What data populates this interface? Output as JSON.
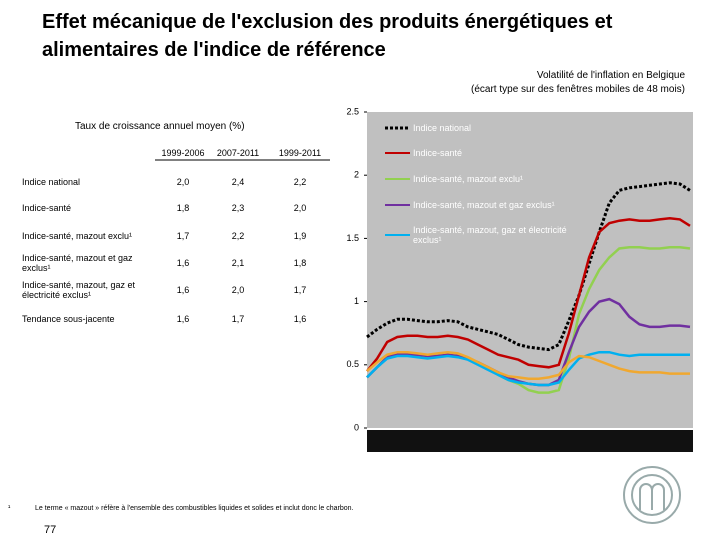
{
  "title": "Effet mécanique de l'exclusion des produits énergétiques et alimentaires de l'indice de référence",
  "table": {
    "title": "Taux de croissance annuel moyen (%)",
    "columns": [
      "1999-2006",
      "2007-2011",
      "1999-2011"
    ],
    "rows": [
      [
        "Indice national",
        "2,0",
        "2,4",
        "2,2"
      ],
      [
        "Indice-santé",
        "1,8",
        "2,3",
        "2,0"
      ],
      [
        "Indice-santé, mazout exclu¹",
        "1,7",
        "2,2",
        "1,9"
      ],
      [
        "Indice-santé, mazout et gaz exclus¹",
        "1,6",
        "2,1",
        "1,8"
      ],
      [
        "Indice-santé, mazout, gaz et électricité exclus¹",
        "1,6",
        "2,0",
        "1,7"
      ],
      [
        "Tendance sous-jacente",
        "1,6",
        "1,7",
        "1,6"
      ]
    ]
  },
  "chart_data": {
    "type": "line",
    "title": "Volatilité de l'inflation en Belgique",
    "subtitle": "(écart type sur des fenêtres mobiles de 48 mois)",
    "categories": [
      null,
      null,
      null,
      null,
      null,
      null,
      null,
      null,
      null,
      null,
      null,
      null,
      null,
      null,
      null,
      null,
      null,
      null,
      null,
      null,
      null,
      null,
      null,
      null,
      null,
      null,
      null,
      null,
      null,
      null,
      null,
      null,
      null
    ],
    "ylim": [
      0,
      2.5
    ],
    "yticks": [
      0,
      0.5,
      1,
      1.5,
      2,
      2.5
    ],
    "grid": false,
    "legend": "top-left",
    "series": [
      {
        "name": "Indice national",
        "color": "#000000",
        "values": [
          0.72,
          0.78,
          0.83,
          0.86,
          0.86,
          0.85,
          0.84,
          0.84,
          0.85,
          0.84,
          0.8,
          0.78,
          0.76,
          0.74,
          0.7,
          0.66,
          0.64,
          0.63,
          0.62,
          0.66,
          0.85,
          1.05,
          1.3,
          1.55,
          1.78,
          1.88,
          1.9,
          1.91,
          1.92,
          1.93,
          1.94,
          1.93,
          1.88
        ]
      },
      {
        "name": "Indice-santé",
        "color": "#c00000",
        "values": [
          0.45,
          0.55,
          0.68,
          0.72,
          0.73,
          0.73,
          0.72,
          0.72,
          0.73,
          0.72,
          0.7,
          0.66,
          0.62,
          0.58,
          0.56,
          0.54,
          0.5,
          0.49,
          0.48,
          0.5,
          0.75,
          1.05,
          1.35,
          1.55,
          1.62,
          1.64,
          1.65,
          1.64,
          1.64,
          1.65,
          1.66,
          1.65,
          1.6
        ]
      },
      {
        "name": "Indice-santé, mazout exclu¹",
        "color": "#92d050",
        "values": [
          0.4,
          0.48,
          0.56,
          0.58,
          0.58,
          0.57,
          0.56,
          0.57,
          0.58,
          0.57,
          0.55,
          0.52,
          0.48,
          0.42,
          0.38,
          0.35,
          0.3,
          0.28,
          0.28,
          0.3,
          0.55,
          0.9,
          1.1,
          1.25,
          1.35,
          1.42,
          1.43,
          1.43,
          1.42,
          1.42,
          1.43,
          1.43,
          1.42
        ]
      },
      {
        "name": "Indice-santé, mazout et gaz exclus¹",
        "color": "#7030a0",
        "values": [
          0.4,
          0.48,
          0.56,
          0.58,
          0.58,
          0.58,
          0.57,
          0.57,
          0.58,
          0.57,
          0.55,
          0.52,
          0.48,
          0.44,
          0.4,
          0.37,
          0.35,
          0.34,
          0.34,
          0.38,
          0.6,
          0.8,
          0.92,
          1.0,
          1.02,
          0.98,
          0.88,
          0.82,
          0.8,
          0.8,
          0.81,
          0.81,
          0.8
        ]
      },
      {
        "name": "Indice-santé, mazout, gaz et électricité exclus¹",
        "color": "#00b0f0",
        "values": [
          0.4,
          0.48,
          0.55,
          0.57,
          0.57,
          0.56,
          0.55,
          0.56,
          0.57,
          0.56,
          0.54,
          0.5,
          0.46,
          0.42,
          0.38,
          0.36,
          0.35,
          0.34,
          0.34,
          0.36,
          0.46,
          0.55,
          0.58,
          0.6,
          0.6,
          0.58,
          0.57,
          0.58,
          0.58,
          0.58,
          0.58,
          0.58,
          0.58
        ]
      },
      {
        "color": "#f0a830",
        "values": [
          0.45,
          0.52,
          0.58,
          0.6,
          0.6,
          0.59,
          0.58,
          0.59,
          0.6,
          0.59,
          0.56,
          0.52,
          0.48,
          0.44,
          0.41,
          0.4,
          0.39,
          0.39,
          0.4,
          0.42,
          0.52,
          0.57,
          0.56,
          0.53,
          0.5,
          0.47,
          0.45,
          0.44,
          0.44,
          0.44,
          0.43,
          0.43,
          0.43
        ]
      }
    ]
  },
  "footnote": {
    "marker": "¹",
    "text": "Le terme « mazout » réfère à l'ensemble des combustibles liquides et solides et inclut donc le charbon."
  },
  "page_number": "77"
}
